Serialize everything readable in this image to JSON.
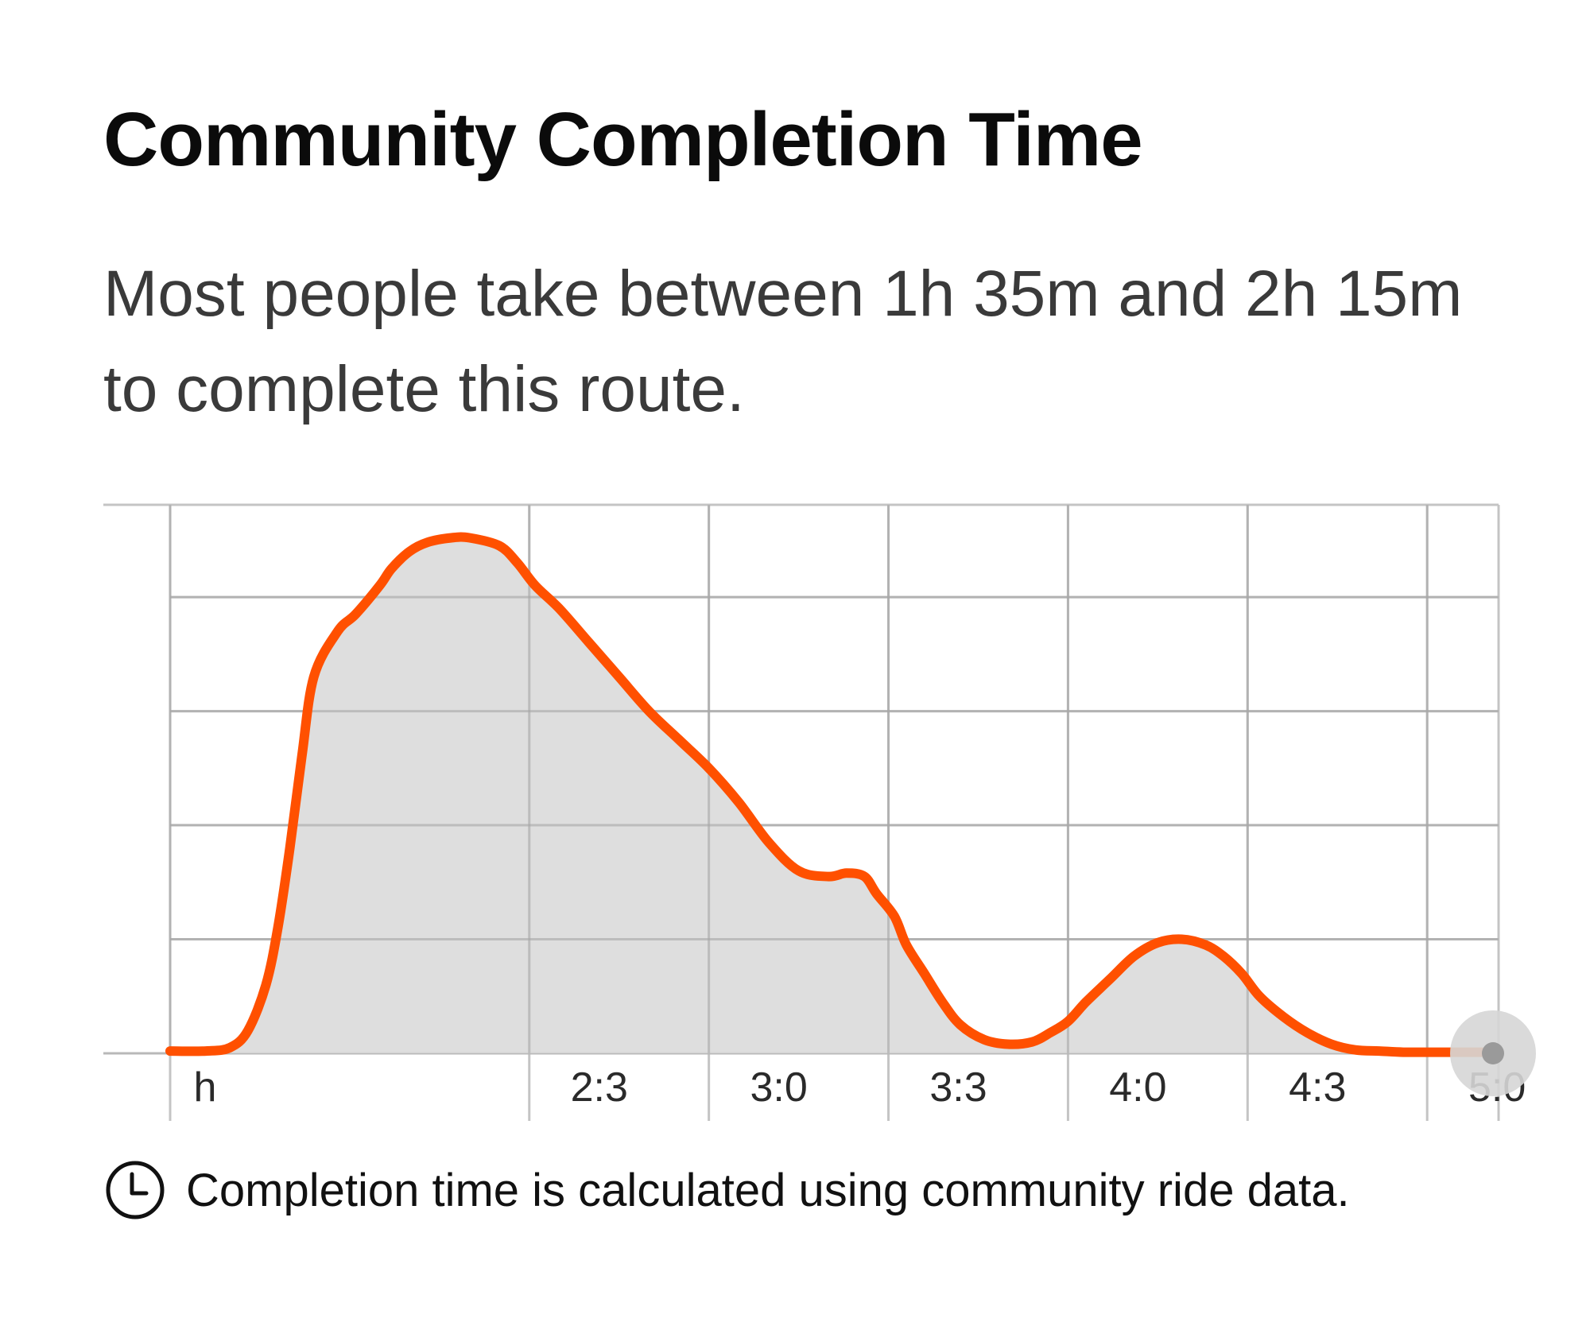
{
  "title": "Community Completion Time",
  "subtitle": "Most people take between 1h 35m and 2h 15m to complete this route.",
  "footer": {
    "icon": "clock-icon",
    "text": "Completion time is calculated using community ride data."
  },
  "colors": {
    "line": "#ff5000",
    "fill": "#d8d8d8",
    "grid": "#c4c4c4",
    "axis_tick": "#555555",
    "handle": "#d6d6d6",
    "handle_dot": "#9a9a9a"
  },
  "chart_data": {
    "type": "area",
    "x_ticks": [
      {
        "value": 90,
        "label": "h"
      },
      {
        "value": 150,
        "label": "2:3"
      },
      {
        "value": 180,
        "label": "3:0"
      },
      {
        "value": 210,
        "label": "3:3"
      },
      {
        "value": 240,
        "label": "4:0"
      },
      {
        "value": 270,
        "label": "4:3"
      },
      {
        "value": 300,
        "label": "5:0"
      }
    ],
    "xlim": [
      90,
      311
    ],
    "ylim": [
      0,
      4.6
    ],
    "y_gridlines": [
      1,
      2,
      3,
      4
    ],
    "grid": true,
    "series": [
      {
        "x": [
          90,
          96,
          100,
          103,
          106,
          108,
          110,
          112,
          114,
          118,
          121,
          125,
          127,
          130,
          133,
          137,
          140,
          145,
          148,
          151,
          155,
          160,
          165,
          170,
          175,
          180,
          185,
          190,
          195,
          200,
          203,
          206,
          208,
          211,
          213,
          216,
          219,
          222,
          226,
          230,
          234,
          237,
          240,
          243,
          247,
          251,
          255,
          259,
          263,
          266,
          269,
          272,
          276,
          280,
          284,
          288,
          292,
          296,
          300,
          305,
          311
        ],
        "y": [
          0.02,
          0.02,
          0.05,
          0.2,
          0.6,
          1.1,
          1.8,
          2.6,
          3.3,
          3.7,
          3.85,
          4.1,
          4.25,
          4.4,
          4.48,
          4.52,
          4.52,
          4.45,
          4.3,
          4.1,
          3.9,
          3.6,
          3.3,
          3.0,
          2.75,
          2.5,
          2.2,
          1.85,
          1.6,
          1.55,
          1.58,
          1.55,
          1.4,
          1.2,
          0.95,
          0.7,
          0.45,
          0.25,
          0.12,
          0.08,
          0.1,
          0.18,
          0.28,
          0.45,
          0.65,
          0.85,
          0.97,
          1.0,
          0.95,
          0.85,
          0.7,
          0.5,
          0.32,
          0.18,
          0.08,
          0.03,
          0.02,
          0.01,
          0.01,
          0.01,
          0.01
        ]
      }
    ],
    "scrubber": {
      "x": 311
    }
  }
}
